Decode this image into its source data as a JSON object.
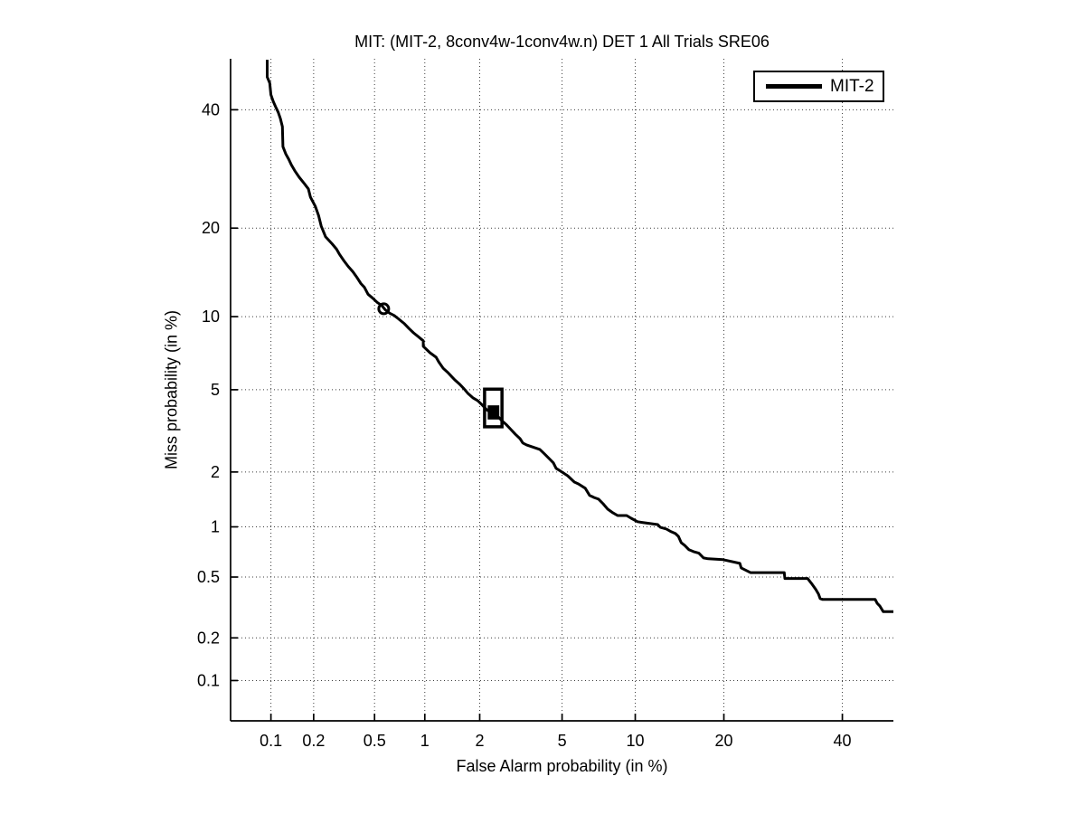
{
  "figure": {
    "background_color": "#ffffff",
    "text_color": "#000000",
    "curve_color": "#000000",
    "grid_color": "#3c3c3c"
  },
  "chart_data": {
    "type": "line",
    "subtype": "DET-curve",
    "title": "MIT: (MIT-2, 8conv4w-1conv4w.n) DET 1 All Trials SRE06",
    "xlabel": "False Alarm probability (in %)",
    "ylabel": "Miss probability (in %)",
    "x_scale": "probit",
    "y_scale": "probit",
    "xlim_pct": [
      0.05,
      50
    ],
    "ylim_pct": [
      0.05,
      50
    ],
    "x_ticks_pct": [
      0.1,
      0.2,
      0.5,
      1,
      2,
      5,
      10,
      20,
      40
    ],
    "y_ticks_pct": [
      0.1,
      0.2,
      0.5,
      1,
      2,
      5,
      10,
      20,
      40
    ],
    "grid": "dotted",
    "legend_position": "top-right",
    "series": [
      {
        "name": "MIT-2",
        "color": "#000000",
        "line_width": 3,
        "points_fa_miss_pct": [
          [
            0.094,
            49.8
          ],
          [
            0.094,
            46.4
          ],
          [
            0.098,
            45.2
          ],
          [
            0.1,
            42.9
          ],
          [
            0.104,
            41.6
          ],
          [
            0.108,
            40.6
          ],
          [
            0.113,
            39.5
          ],
          [
            0.117,
            38.3
          ],
          [
            0.121,
            36.8
          ],
          [
            0.122,
            33.1
          ],
          [
            0.128,
            31.8
          ],
          [
            0.134,
            30.9
          ],
          [
            0.14,
            29.9
          ],
          [
            0.148,
            28.9
          ],
          [
            0.159,
            27.8
          ],
          [
            0.172,
            26.8
          ],
          [
            0.184,
            25.9
          ],
          [
            0.19,
            24.6
          ],
          [
            0.205,
            23.2
          ],
          [
            0.216,
            21.8
          ],
          [
            0.225,
            20.3
          ],
          [
            0.241,
            18.8
          ],
          [
            0.266,
            17.9
          ],
          [
            0.285,
            17.2
          ],
          [
            0.297,
            16.6
          ],
          [
            0.318,
            15.8
          ],
          [
            0.34,
            15.1
          ],
          [
            0.364,
            14.5
          ],
          [
            0.389,
            13.8
          ],
          [
            0.41,
            13.2
          ],
          [
            0.432,
            12.8
          ],
          [
            0.455,
            12.1
          ],
          [
            0.487,
            11.7
          ],
          [
            0.519,
            11.3
          ],
          [
            0.554,
            11.0
          ],
          [
            0.583,
            10.6
          ],
          [
            0.62,
            10.3
          ],
          [
            0.66,
            10.1
          ],
          [
            0.695,
            9.85
          ],
          [
            0.76,
            9.4
          ],
          [
            0.81,
            9.0
          ],
          [
            0.86,
            8.66
          ],
          [
            0.91,
            8.4
          ],
          [
            0.98,
            8.05
          ],
          [
            0.98,
            7.65
          ],
          [
            1.07,
            7.2
          ],
          [
            1.16,
            6.9
          ],
          [
            1.2,
            6.6
          ],
          [
            1.27,
            6.2
          ],
          [
            1.35,
            5.94
          ],
          [
            1.39,
            5.8
          ],
          [
            1.47,
            5.53
          ],
          [
            1.56,
            5.3
          ],
          [
            1.65,
            5.05
          ],
          [
            1.74,
            4.8
          ],
          [
            1.84,
            4.6
          ],
          [
            1.95,
            4.47
          ],
          [
            2.06,
            4.27
          ],
          [
            2.17,
            4.06
          ],
          [
            2.34,
            3.87
          ],
          [
            2.44,
            3.83
          ],
          [
            2.6,
            3.6
          ],
          [
            2.74,
            3.44
          ],
          [
            2.88,
            3.27
          ],
          [
            3.03,
            3.1
          ],
          [
            3.19,
            2.95
          ],
          [
            3.29,
            2.81
          ],
          [
            3.43,
            2.75
          ],
          [
            3.96,
            2.61
          ],
          [
            4.16,
            2.48
          ],
          [
            4.37,
            2.35
          ],
          [
            4.57,
            2.23
          ],
          [
            4.7,
            2.09
          ],
          [
            4.93,
            2.02
          ],
          [
            5.3,
            1.91
          ],
          [
            5.66,
            1.77
          ],
          [
            5.9,
            1.73
          ],
          [
            6.3,
            1.64
          ],
          [
            6.58,
            1.5
          ],
          [
            6.87,
            1.46
          ],
          [
            7.17,
            1.43
          ],
          [
            7.48,
            1.35
          ],
          [
            7.8,
            1.26
          ],
          [
            8.13,
            1.21
          ],
          [
            8.55,
            1.16
          ],
          [
            9.27,
            1.16
          ],
          [
            9.65,
            1.12
          ],
          [
            10.2,
            1.07
          ],
          [
            10.6,
            1.06
          ],
          [
            12.1,
            1.03
          ],
          [
            12.35,
            0.995
          ],
          [
            13.0,
            0.97
          ],
          [
            13.5,
            0.937
          ],
          [
            13.96,
            0.915
          ],
          [
            14.3,
            0.88
          ],
          [
            14.6,
            0.81
          ],
          [
            15.0,
            0.78
          ],
          [
            15.5,
            0.735
          ],
          [
            16.06,
            0.715
          ],
          [
            16.7,
            0.7
          ],
          [
            17.3,
            0.655
          ],
          [
            17.9,
            0.648
          ],
          [
            19.9,
            0.64
          ],
          [
            22.3,
            0.607
          ],
          [
            22.5,
            0.57
          ],
          [
            23.9,
            0.533
          ],
          [
            29.4,
            0.533
          ],
          [
            29.5,
            0.49
          ],
          [
            33.5,
            0.49
          ],
          [
            34.2,
            0.457
          ],
          [
            35.0,
            0.417
          ],
          [
            35.5,
            0.39
          ],
          [
            35.8,
            0.365
          ],
          [
            36.3,
            0.36
          ],
          [
            46.4,
            0.36
          ],
          [
            46.8,
            0.34
          ],
          [
            47.3,
            0.327
          ],
          [
            48.0,
            0.3
          ],
          [
            50.0,
            0.3
          ]
        ]
      }
    ],
    "markers": [
      {
        "type": "open-circle",
        "series": "MIT-2",
        "fa_pct": 0.57,
        "miss_pct": 10.7,
        "radius_px": 5.5,
        "stroke_px": 3
      },
      {
        "type": "open-rect",
        "series": "MIT-2",
        "fa_range_pct": [
          2.12,
          2.6
        ],
        "miss_range_pct": [
          3.37,
          5.03
        ],
        "stroke_px": 3.5
      },
      {
        "type": "filled-rect",
        "series": "MIT-2",
        "fa_range_pct": [
          2.2,
          2.52
        ],
        "miss_range_pct": [
          3.65,
          4.25
        ]
      }
    ],
    "legend": [
      {
        "label": "MIT-2",
        "color": "#000000"
      }
    ]
  }
}
